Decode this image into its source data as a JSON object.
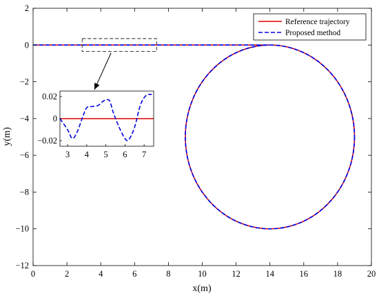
{
  "chart_data": {
    "type": "line",
    "xlabel": "x(m)",
    "ylabel": "y(m)",
    "xlim": [
      0,
      20
    ],
    "ylim": [
      -12,
      2
    ],
    "xticks": [
      0,
      2,
      4,
      6,
      8,
      10,
      12,
      14,
      16,
      18,
      20
    ],
    "yticks": [
      2,
      0,
      -2,
      -4,
      -6,
      -8,
      -10,
      -12
    ],
    "x_tick_labels": [
      "0",
      "2",
      "4",
      "6",
      "8",
      "10",
      "12",
      "14",
      "16",
      "18",
      "20"
    ],
    "y_tick_labels": [
      "2",
      "0",
      "−2",
      "−4",
      "−6",
      "−8",
      "−10",
      "−12"
    ],
    "grid": false,
    "legend_position": "top-right",
    "series": [
      {
        "name": "Reference trajectory",
        "color": "#e00000",
        "style": "solid",
        "path": {
          "straight_from_x": 0,
          "straight_to_x": 14,
          "straight_y": 0,
          "circle_center": [
            14,
            -5
          ],
          "circle_radius": 5
        }
      },
      {
        "name": "Proposed method",
        "color": "#0000e0",
        "style": "dashed",
        "path": {
          "straight_from_x": 0,
          "straight_to_x": 14,
          "straight_y": 0,
          "circle_center": [
            14,
            -5
          ],
          "circle_radius": 5,
          "deviation_y": [
            [
              2.6,
              0.0
            ],
            [
              3.0,
              -0.01
            ],
            [
              3.25,
              -0.018
            ],
            [
              3.5,
              -0.012
            ],
            [
              3.8,
              0.002
            ],
            [
              4.0,
              0.01
            ],
            [
              4.3,
              0.011
            ],
            [
              4.6,
              0.012
            ],
            [
              4.8,
              0.015
            ],
            [
              5.0,
              0.017
            ],
            [
              5.2,
              0.016
            ],
            [
              5.4,
              0.005
            ],
            [
              5.7,
              -0.008
            ],
            [
              6.0,
              -0.018
            ],
            [
              6.2,
              -0.019
            ],
            [
              6.5,
              -0.008
            ],
            [
              6.8,
              0.012
            ],
            [
              7.1,
              0.021
            ],
            [
              7.4,
              0.022
            ]
          ]
        }
      }
    ],
    "annotations": [
      {
        "type": "zoom-box",
        "xrange": [
          2.9,
          7.3
        ],
        "yrange": [
          -0.35,
          0.35
        ]
      },
      {
        "type": "arrow",
        "from": "zoom-box",
        "to": "inset"
      }
    ],
    "inset": {
      "xlim": [
        2.6,
        7.5
      ],
      "ylim": [
        -0.025,
        0.025
      ],
      "xticks": [
        3,
        4,
        5,
        6,
        7
      ],
      "yticks": [
        0.02,
        0,
        -0.02
      ],
      "x_tick_labels": [
        "3",
        "4",
        "5",
        "6",
        "7"
      ],
      "y_tick_labels": [
        "0.02",
        "0",
        "−0.02"
      ],
      "reference_y": 0
    }
  }
}
